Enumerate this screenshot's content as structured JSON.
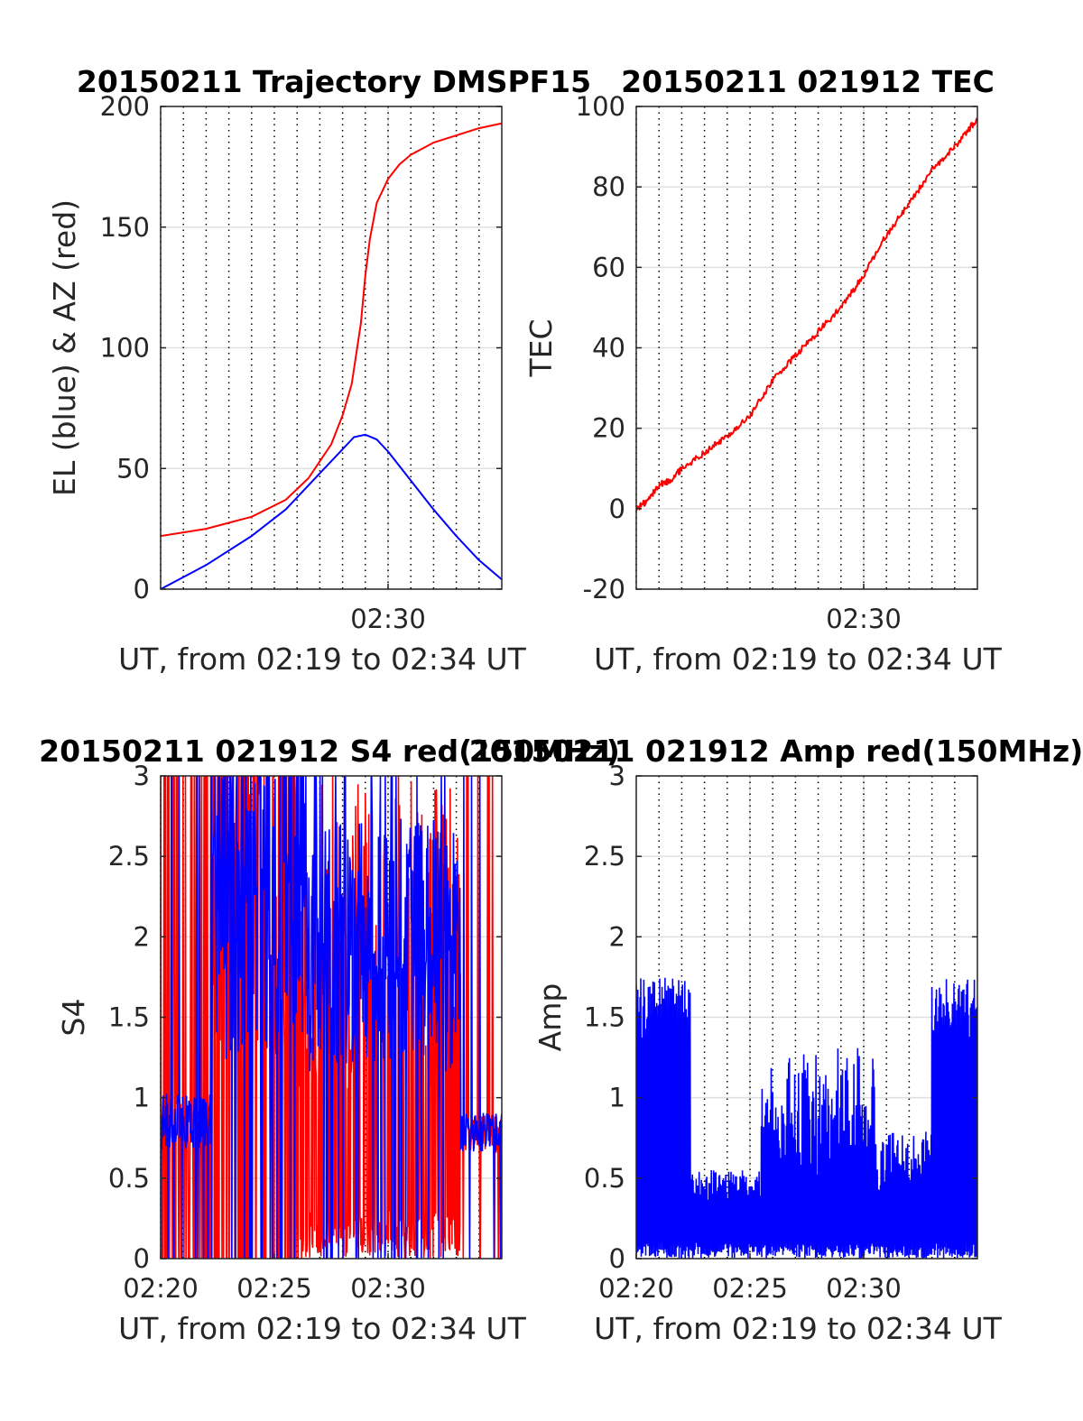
{
  "chart_data": [
    {
      "type": "line",
      "title": "20150211 Trajectory DMSPF15",
      "xlabel": "UT, from 02:19 to 02:34 UT",
      "ylabel": "EL (blue) & AZ (red)",
      "xlim": [
        2.0,
        17.0
      ],
      "ylim": [
        0,
        200
      ],
      "yticks": [
        0,
        50,
        100,
        150,
        200
      ],
      "xticks": [
        {
          "value": 12.0,
          "label": "02:30"
        }
      ],
      "grid": true,
      "series": [
        {
          "color": "#0000ff",
          "x": [
            2.0,
            4.0,
            6.0,
            7.5,
            9.0,
            10.0,
            10.5,
            11.0,
            11.5,
            12.0,
            13.0,
            14.0,
            15.0,
            16.0,
            17.0
          ],
          "y": [
            0,
            10,
            22,
            33,
            48,
            58,
            63,
            64,
            62,
            57,
            45,
            33,
            22,
            12,
            4
          ]
        },
        {
          "color": "#ff0000",
          "x": [
            2.0,
            4.0,
            6.0,
            7.5,
            8.5,
            9.5,
            10.0,
            10.4,
            10.8,
            11.0,
            11.2,
            11.5,
            12.0,
            12.5,
            13.0,
            14.0,
            15.0,
            16.0,
            17.0
          ],
          "y": [
            22,
            25,
            30,
            37,
            46,
            60,
            72,
            85,
            110,
            130,
            145,
            160,
            170,
            176,
            180,
            185,
            188,
            191,
            193
          ]
        }
      ]
    },
    {
      "type": "line",
      "title": "20150211 021912 TEC",
      "xlabel": "UT, from 02:19 to 02:34 UT",
      "ylabel": "TEC",
      "xlim": [
        2.0,
        17.0
      ],
      "ylim": [
        -20,
        100
      ],
      "yticks": [
        -20,
        0,
        20,
        40,
        60,
        80,
        100
      ],
      "xticks": [
        {
          "value": 12.0,
          "label": "02:30"
        }
      ],
      "grid": true,
      "series": [
        {
          "color": "#ff0000",
          "x": [
            2.0,
            2.5,
            3.0,
            3.5,
            4.0,
            5.0,
            6.0,
            7.0,
            8.0,
            9.0,
            10.0,
            11.0,
            12.0,
            13.0,
            14.0,
            15.0,
            16.0,
            17.0
          ],
          "y": [
            0,
            2,
            6,
            7,
            10,
            14,
            18,
            23,
            32,
            38,
            44,
            50,
            58,
            68,
            76,
            84,
            90,
            97
          ]
        }
      ]
    },
    {
      "type": "line",
      "title": "20150211 021912 S4 red(150MHz)",
      "xlabel": "UT, from 02:19 to 02:34 UT",
      "ylabel": "S4",
      "xlim": [
        2.0,
        17.0
      ],
      "ylim": [
        0,
        3
      ],
      "yticks": [
        0,
        0.5,
        1,
        1.5,
        2,
        2.5,
        3
      ],
      "xticks": [
        {
          "value": 2.0,
          "label": "02:20"
        },
        {
          "value": 7.0,
          "label": "02:25"
        },
        {
          "value": 12.0,
          "label": "02:30"
        }
      ],
      "grid": true,
      "series": [
        {
          "color": "#ff0000",
          "x": [
            2.0,
            17.0
          ],
          "y": [
            0,
            3
          ]
        },
        {
          "color": "#0000ff",
          "x": [
            2.0,
            17.0
          ],
          "y": [
            0,
            3
          ]
        }
      ]
    },
    {
      "type": "line",
      "title": "20150211 021912 Amp red(150MHz)",
      "xlabel": "UT, from 02:19 to 02:34 UT",
      "ylabel": "Amp",
      "xlim": [
        2.0,
        17.0
      ],
      "ylim": [
        0,
        3
      ],
      "yticks": [
        0,
        0.5,
        1,
        1.5,
        2,
        2.5,
        3
      ],
      "xticks": [
        {
          "value": 2.0,
          "label": "02:20"
        },
        {
          "value": 7.0,
          "label": "02:25"
        },
        {
          "value": 12.0,
          "label": "02:30"
        }
      ],
      "grid": true,
      "series": [
        {
          "color": "#0000ff",
          "x": [
            2.0,
            17.0
          ],
          "y": [
            0,
            2.05
          ]
        }
      ]
    }
  ]
}
